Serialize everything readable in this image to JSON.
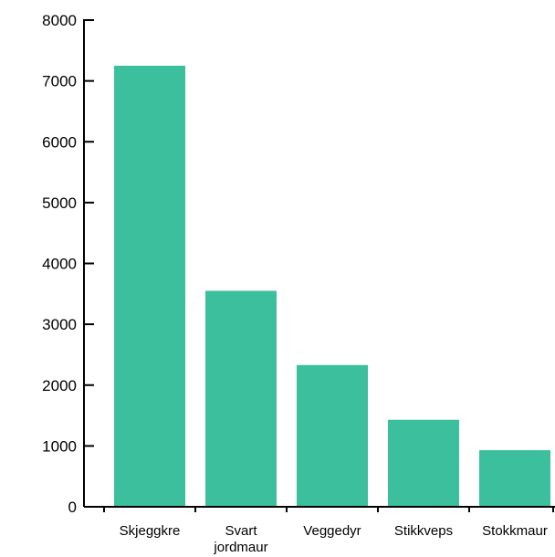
{
  "chart_data": {
    "type": "bar",
    "title": "",
    "xlabel": "",
    "ylabel": "",
    "categories": [
      "Skjeggkre",
      "Svart jordmaur",
      "Veggedyr",
      "Stikkveps",
      "Stokkmaur"
    ],
    "values": [
      7250,
      3550,
      2330,
      1430,
      930
    ],
    "ylim": [
      0,
      8000
    ],
    "yticks": [
      0,
      1000,
      2000,
      3000,
      4000,
      5000,
      6000,
      7000,
      8000
    ],
    "grid": false,
    "legend": "none",
    "colors": {
      "bar": "#3bbf9d",
      "axis": "#000000"
    }
  }
}
